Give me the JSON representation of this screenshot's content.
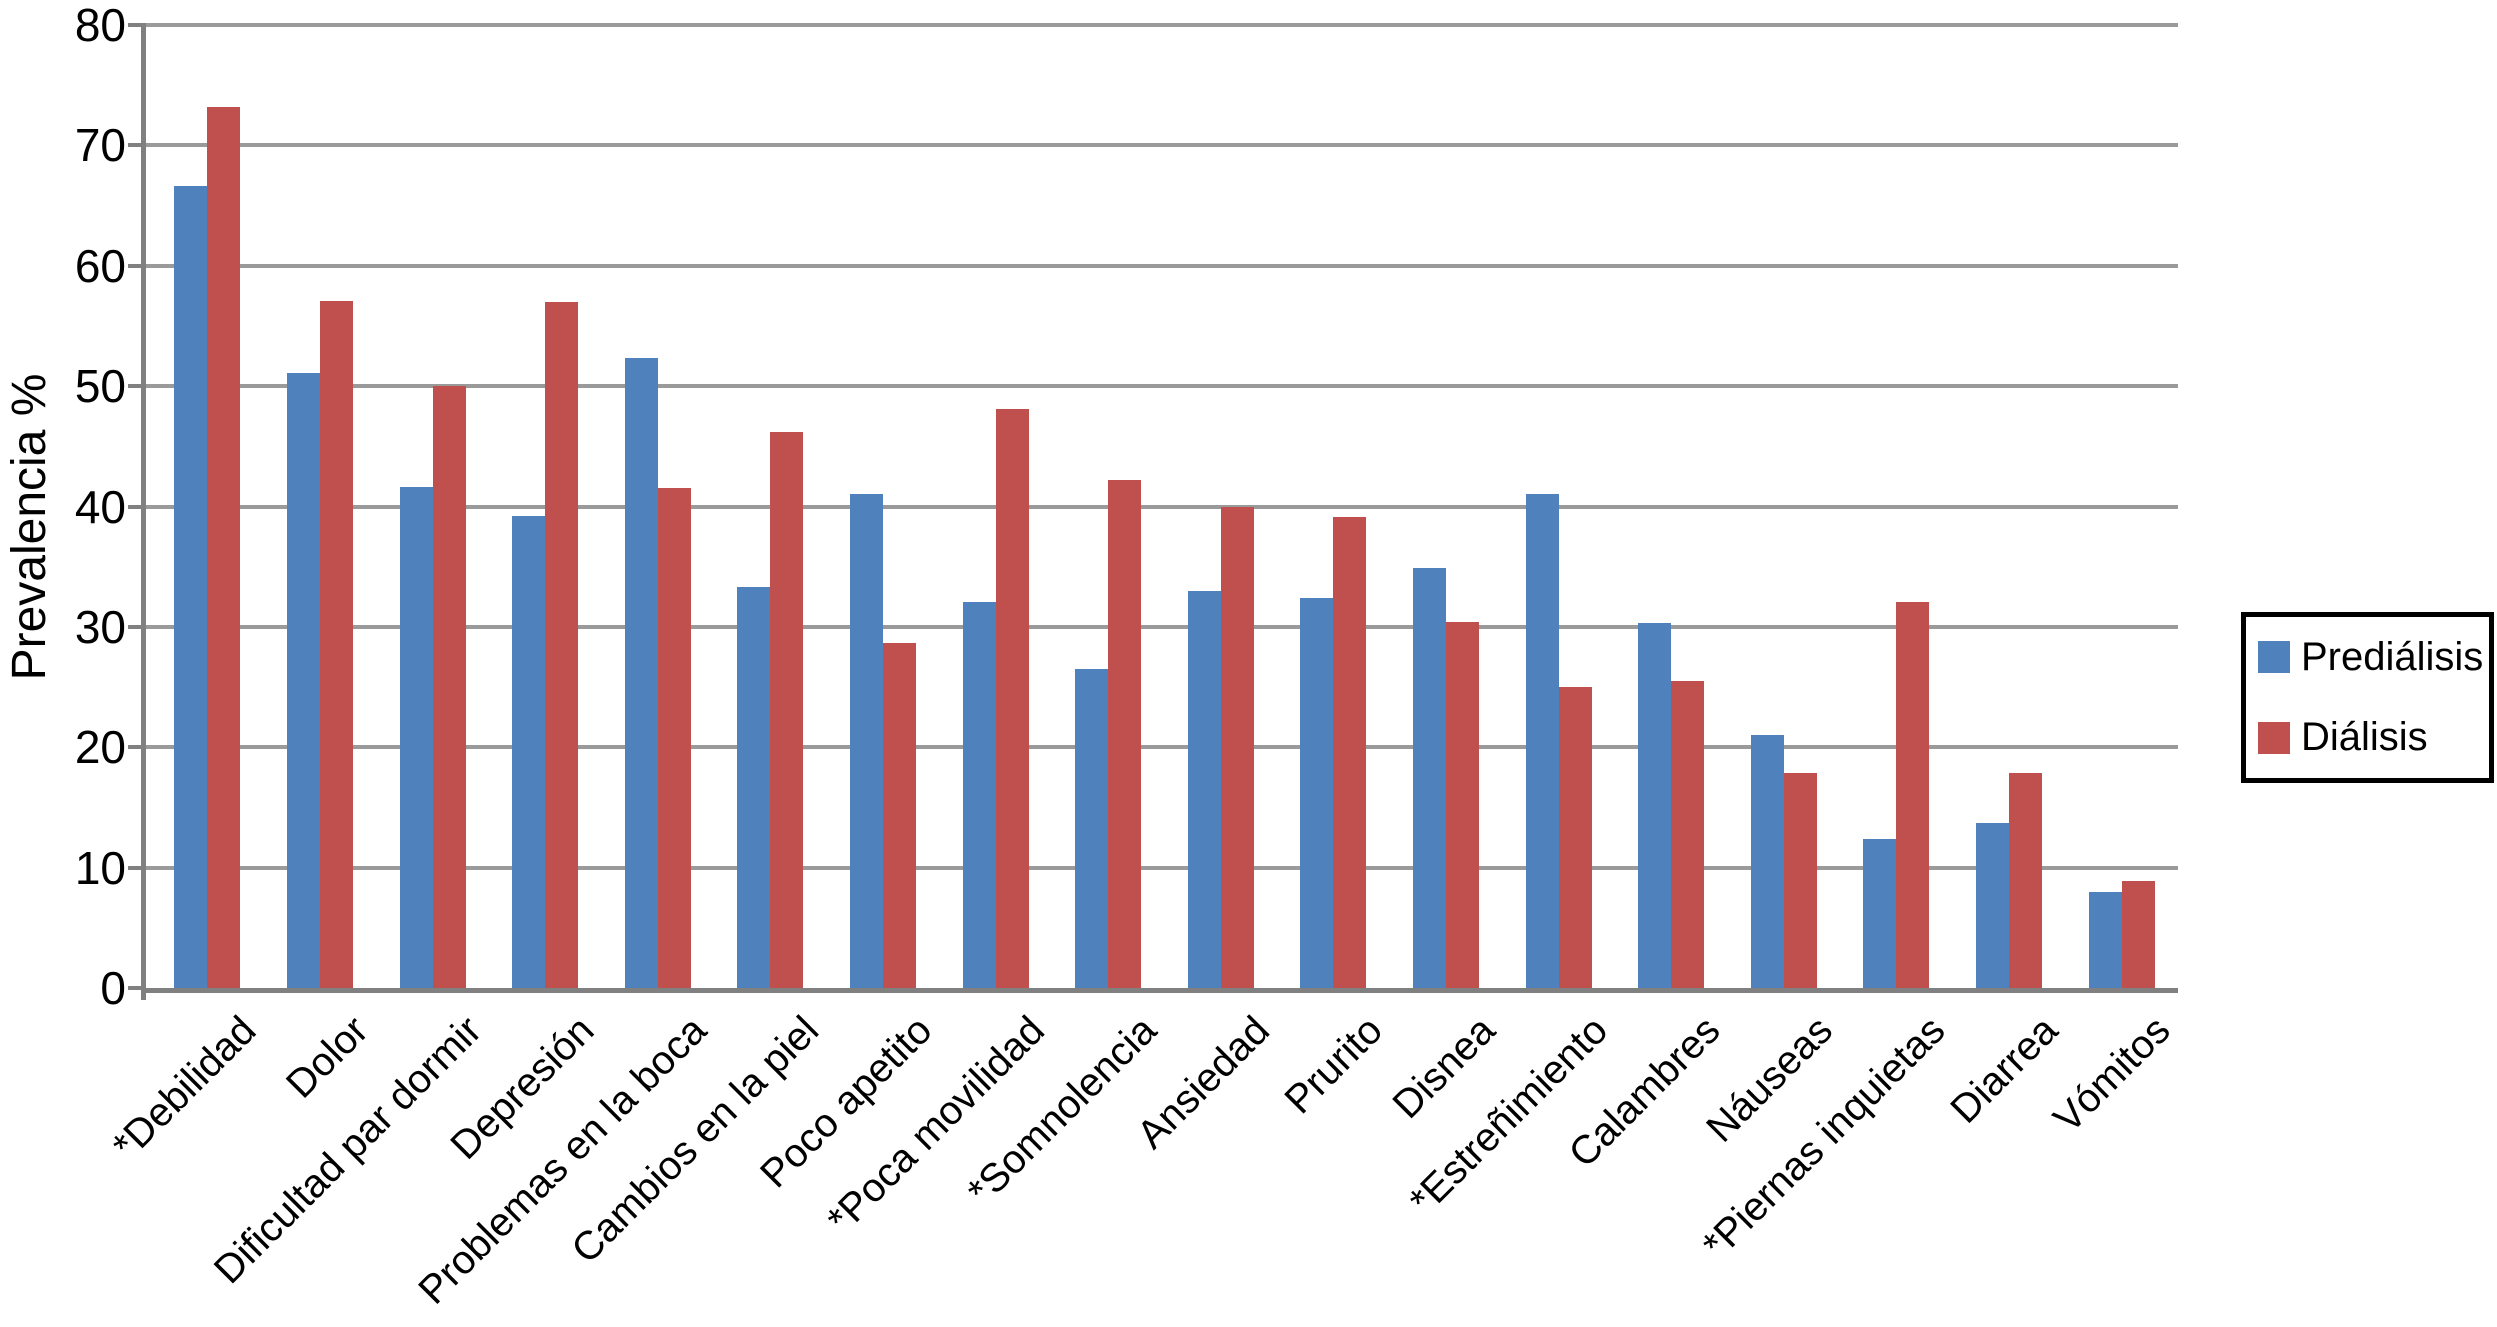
{
  "colors": {
    "predialisis": "#4F81BD",
    "dialisis": "#C0504D",
    "gridline": "#9a9a9a",
    "axis": "#808080",
    "text": "#000000",
    "legend_border": "#000000",
    "background": "#ffffff"
  },
  "chart_data": {
    "type": "bar",
    "title": "",
    "xlabel": "",
    "ylabel": "Prevalencia %",
    "ylim": [
      0,
      80
    ],
    "yticks": [
      0,
      10,
      20,
      30,
      40,
      50,
      60,
      70,
      80
    ],
    "grid": "horizontal",
    "legend_position": "right",
    "categories": [
      "*Debilidad",
      "Dolor",
      "Dificultad par dormir",
      "Depresión",
      "Problemas en la boca",
      "Cambios en la piel",
      "Poco apetito",
      "*Poca movilidad",
      "*Somnolencia",
      "Ansiedad",
      "Prurito",
      "Disnea",
      "*Estreñimiento",
      "Calambres",
      "Náuseas",
      "*Piernas inquietas",
      "Diarrea",
      "Vómitos"
    ],
    "series": [
      {
        "name": "Prediálisis",
        "color": "#4F81BD",
        "values": [
          66.6,
          51.1,
          41.6,
          39.2,
          52.3,
          33.3,
          41.0,
          32.1,
          26.5,
          33.0,
          32.4,
          34.9,
          41.0,
          30.3,
          21.0,
          12.4,
          13.7,
          8.0
        ]
      },
      {
        "name": "Diálisis",
        "color": "#C0504D",
        "values": [
          73.2,
          57.1,
          50.0,
          57.0,
          41.5,
          46.2,
          28.7,
          48.1,
          42.2,
          40.0,
          39.1,
          30.4,
          25.0,
          25.5,
          17.9,
          32.1,
          17.9,
          8.9
        ]
      }
    ]
  }
}
